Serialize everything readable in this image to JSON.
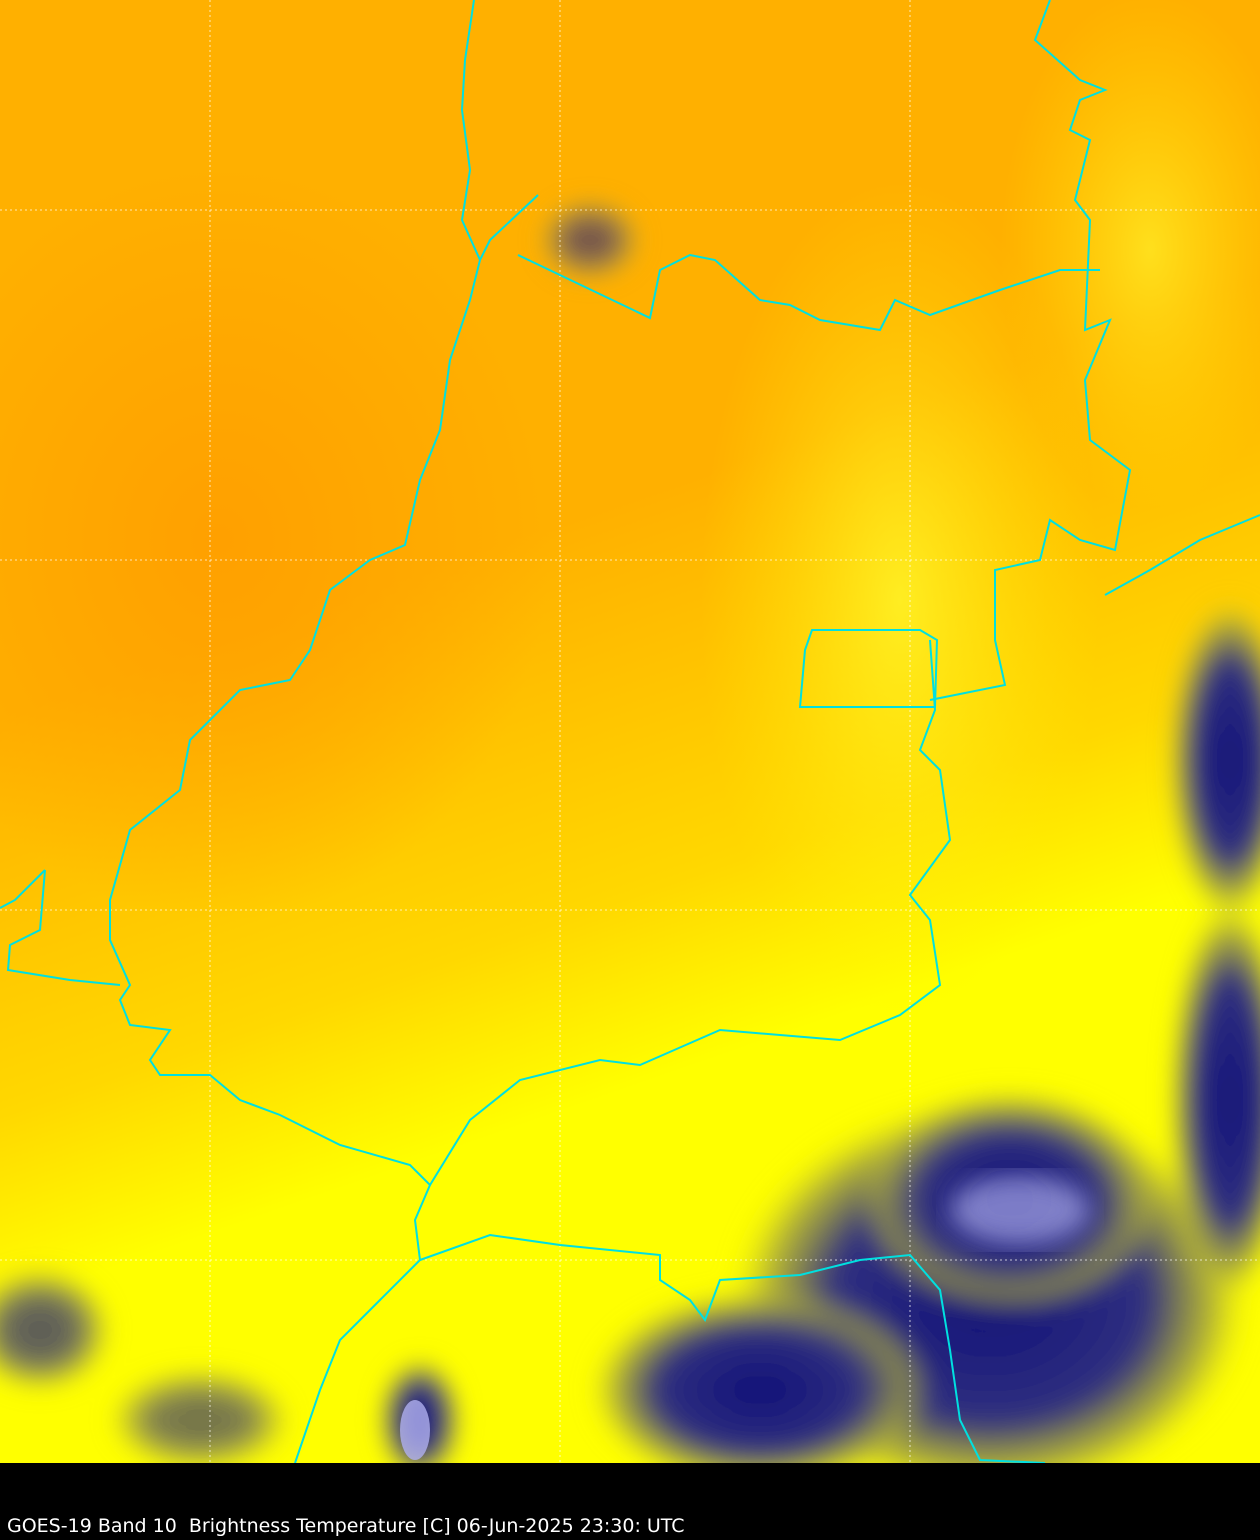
{
  "caption": "GOES-19 Band 10  Brightness Temperature [C] 06-Jun-2025 23:30: UTC",
  "colors": {
    "warm": "#ffa400",
    "mid": "#ffc000",
    "cool": "#ffff00",
    "cold": "#1a1a80",
    "coldest": "#a0a0e0",
    "borders": "#00e0e0",
    "grid": "#ffffff",
    "background": "#000000"
  },
  "map": {
    "borders": "state/country boundaries",
    "graticule": "dotted"
  }
}
